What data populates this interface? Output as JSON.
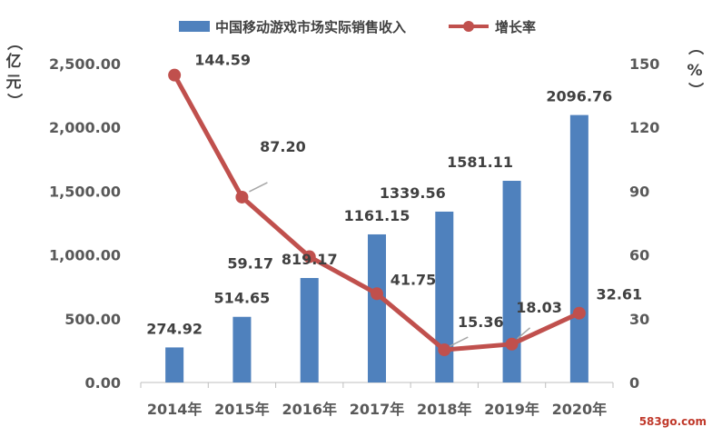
{
  "chart_data": {
    "type": "bar+line",
    "categories": [
      "2014年",
      "2015年",
      "2016年",
      "2017年",
      "2018年",
      "2019年",
      "2020年"
    ],
    "series": [
      {
        "name": "中国移动游戏市场实际销售收入",
        "type": "bar",
        "axis": "left",
        "values": [
          274.92,
          514.65,
          819.17,
          1161.15,
          1339.56,
          1581.11,
          2096.76
        ],
        "labels": [
          "274.92",
          "514.65",
          "819.17",
          "1161.15",
          "1339.56",
          "1581.11",
          "2096.76"
        ],
        "color": "#4f81bd"
      },
      {
        "name": "增长率",
        "type": "line",
        "axis": "right",
        "values": [
          144.59,
          87.2,
          59.17,
          41.75,
          15.36,
          18.03,
          32.61
        ],
        "labels": [
          "144.59",
          "87.20",
          "59.17",
          "41.75",
          "15.36",
          "18.03",
          "32.61"
        ],
        "color": "#c0504d"
      }
    ],
    "y_left": {
      "label_chars": [
        "（",
        "亿",
        "元",
        "）"
      ],
      "ylim": [
        0,
        2500
      ],
      "ticks": [
        "0.00",
        "500.00",
        "1,000.00",
        "1,500.00",
        "2,000.00",
        "2,500.00"
      ]
    },
    "y_right": {
      "label_chars": [
        "（",
        "%",
        "）"
      ],
      "ylim": [
        0,
        150
      ],
      "ticks": [
        "0",
        "30",
        "60",
        "90",
        "120",
        "150"
      ]
    },
    "grid": false,
    "legend_position": "top"
  },
  "watermark": "583go.com"
}
